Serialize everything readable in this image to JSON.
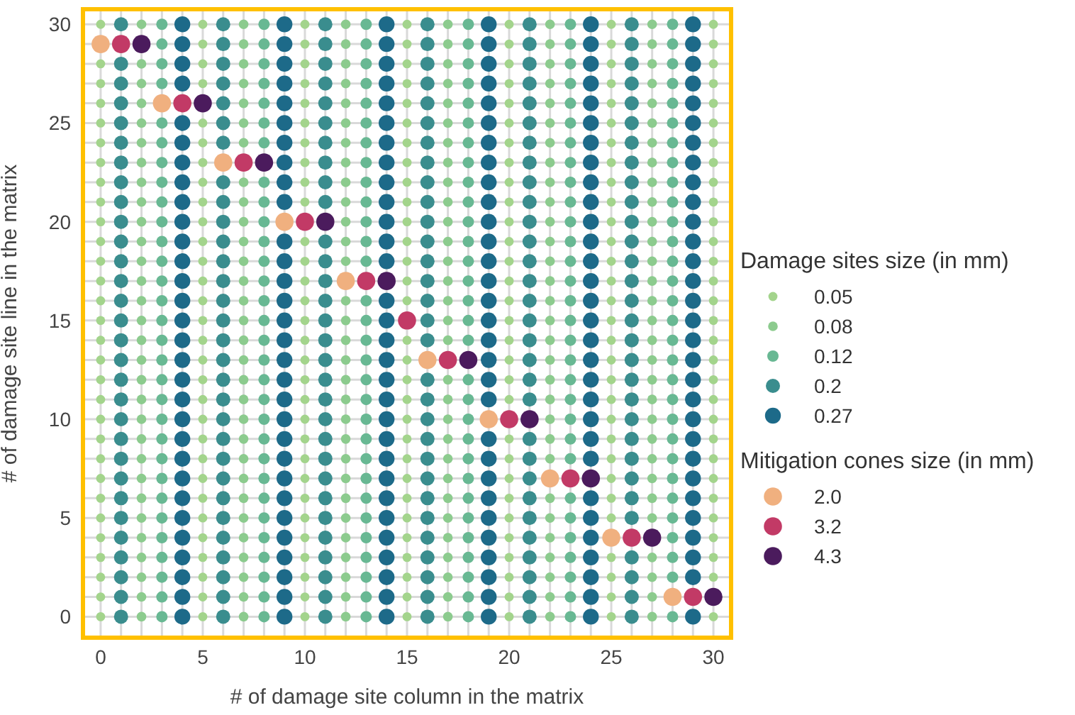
{
  "chart_data": {
    "type": "scatter",
    "xlabel": "# of damage site column in the matrix",
    "ylabel": "# of damage site line in the matrix",
    "legend_title": [
      "Damage sites size (in mm)",
      "Mitigation cones size (in mm)"
    ],
    "legend": "right",
    "grid": true,
    "marker": "circle",
    "xlim": [
      -0.9,
      30.9
    ],
    "ylim": [
      -1.1,
      30.8
    ],
    "xticks": [
      0,
      {
        "value": 1,
        "label": null
      },
      {
        "value": 2,
        "label": null
      },
      {
        "value": 3,
        "label": null
      },
      {
        "value": 4,
        "label": null
      },
      5,
      {
        "value": 6,
        "label": null
      },
      {
        "value": 7,
        "label": null
      },
      {
        "value": 8,
        "label": null
      },
      {
        "value": 9,
        "label": null
      },
      10,
      {
        "value": 11,
        "label": null
      },
      {
        "value": 12,
        "label": null
      },
      {
        "value": 13,
        "label": null
      },
      {
        "value": 14,
        "label": null
      },
      15,
      {
        "value": 16,
        "label": null
      },
      {
        "value": 17,
        "label": null
      },
      {
        "value": 18,
        "label": null
      },
      {
        "value": 19,
        "label": null
      },
      20,
      {
        "value": 21,
        "label": null
      },
      {
        "value": 22,
        "label": null
      },
      {
        "value": 23,
        "label": null
      },
      {
        "value": 24,
        "label": null
      },
      25,
      {
        "value": 26,
        "label": null
      },
      {
        "value": 27,
        "label": null
      },
      {
        "value": 28,
        "label": null
      },
      {
        "value": 29,
        "label": null
      },
      30
    ],
    "yticks": [
      0,
      {
        "value": 1,
        "label": null
      },
      {
        "value": 2,
        "label": null
      },
      {
        "value": 3,
        "label": null
      },
      {
        "value": 4,
        "label": null
      },
      5,
      {
        "value": 6,
        "label": null
      },
      {
        "value": 7,
        "label": null
      },
      {
        "value": 8,
        "label": null
      },
      {
        "value": 9,
        "label": null
      },
      10,
      {
        "value": 11,
        "label": null
      },
      {
        "value": 12,
        "label": null
      },
      {
        "value": 13,
        "label": null
      },
      {
        "value": 14,
        "label": null
      },
      15,
      {
        "value": 16,
        "label": null
      },
      {
        "value": 17,
        "label": null
      },
      {
        "value": 18,
        "label": null
      },
      {
        "value": 19,
        "label": null
      },
      20,
      {
        "value": 21,
        "label": null
      },
      {
        "value": 22,
        "label": null
      },
      {
        "value": 23,
        "label": null
      },
      {
        "value": 24,
        "label": null
      },
      25,
      {
        "value": 26,
        "label": null
      },
      {
        "value": 27,
        "label": null
      },
      {
        "value": 28,
        "label": null
      },
      {
        "value": 29,
        "label": null
      },
      30
    ],
    "series": [
      {
        "name": "0.05",
        "color": "#a3d48c",
        "x": [
          0,
          0,
          0,
          0,
          0,
          0,
          0,
          0,
          0,
          0,
          0,
          0,
          0,
          0,
          0,
          0,
          0,
          0,
          0,
          0,
          0,
          0,
          0,
          0,
          0,
          0,
          0,
          0,
          0,
          0,
          5,
          5,
          5,
          5,
          5,
          5,
          5,
          5,
          5,
          5,
          5,
          5,
          5,
          5,
          5,
          5,
          5,
          5,
          5,
          5,
          5,
          5,
          5,
          5,
          5,
          5,
          5,
          5,
          5,
          5,
          10,
          10,
          10,
          10,
          10,
          10,
          10,
          10,
          10,
          10,
          10,
          10,
          10,
          10,
          10,
          10,
          10,
          10,
          10,
          10,
          10,
          10,
          10,
          10,
          10,
          10,
          10,
          10,
          10,
          10,
          15,
          15,
          15,
          15,
          15,
          15,
          15,
          15,
          15,
          15,
          15,
          15,
          15,
          15,
          15,
          15,
          15,
          15,
          15,
          15,
          15,
          15,
          15,
          15,
          15,
          15,
          15,
          15,
          15,
          15,
          20,
          20,
          20,
          20,
          20,
          20,
          20,
          20,
          20,
          20,
          20,
          20,
          20,
          20,
          20,
          20,
          20,
          20,
          20,
          20,
          20,
          20,
          20,
          20,
          20,
          20,
          20,
          20,
          20,
          20,
          25,
          25,
          25,
          25,
          25,
          25,
          25,
          25,
          25,
          25,
          25,
          25,
          25,
          25,
          25,
          25,
          25,
          25,
          25,
          25,
          25,
          25,
          25,
          25,
          25,
          25,
          25,
          25,
          25,
          25,
          30,
          30,
          30,
          30,
          30,
          30,
          30,
          30,
          30,
          30,
          30,
          30,
          30,
          30,
          30,
          30,
          30,
          30,
          30,
          30,
          30,
          30,
          30,
          30,
          30,
          30,
          30,
          30,
          30,
          30
        ],
        "values": [
          0,
          1,
          2,
          3,
          4,
          5,
          6,
          7,
          8,
          9,
          10,
          11,
          12,
          13,
          14,
          15,
          16,
          17,
          18,
          19,
          20,
          21,
          22,
          23,
          24,
          25,
          26,
          27,
          28,
          30,
          0,
          1,
          2,
          3,
          4,
          5,
          6,
          7,
          8,
          9,
          10,
          11,
          12,
          13,
          14,
          15,
          16,
          17,
          18,
          19,
          20,
          21,
          22,
          23,
          24,
          25,
          27,
          28,
          29,
          30,
          0,
          1,
          2,
          3,
          4,
          5,
          6,
          7,
          8,
          9,
          10,
          11,
          12,
          13,
          14,
          15,
          16,
          17,
          18,
          19,
          21,
          22,
          23,
          24,
          25,
          26,
          27,
          28,
          29,
          30,
          0,
          1,
          2,
          3,
          4,
          5,
          6,
          7,
          8,
          9,
          10,
          11,
          12,
          13,
          14,
          16,
          17,
          18,
          19,
          20,
          21,
          22,
          23,
          24,
          25,
          26,
          27,
          28,
          29,
          30,
          0,
          1,
          2,
          3,
          4,
          5,
          6,
          7,
          8,
          9,
          11,
          12,
          13,
          14,
          15,
          16,
          17,
          18,
          19,
          20,
          21,
          22,
          23,
          24,
          25,
          26,
          27,
          28,
          29,
          30,
          0,
          1,
          2,
          3,
          5,
          6,
          7,
          8,
          9,
          10,
          11,
          12,
          13,
          14,
          15,
          16,
          17,
          18,
          19,
          20,
          21,
          22,
          23,
          24,
          25,
          26,
          27,
          28,
          29,
          30,
          0,
          2,
          3,
          4,
          5,
          6,
          7,
          8,
          9,
          10,
          11,
          12,
          13,
          14,
          15,
          16,
          17,
          18,
          19,
          20,
          21,
          22,
          23,
          24,
          25,
          26,
          27,
          28,
          29,
          30
        ]
      },
      {
        "name": "0.08",
        "color": "#8ccb8e",
        "x": [
          2,
          2,
          2,
          2,
          2,
          2,
          2,
          2,
          2,
          2,
          2,
          2,
          2,
          2,
          2,
          2,
          2,
          2,
          2,
          2,
          2,
          2,
          2,
          2,
          2,
          2,
          2,
          2,
          2,
          2,
          7,
          7,
          7,
          7,
          7,
          7,
          7,
          7,
          7,
          7,
          7,
          7,
          7,
          7,
          7,
          7,
          7,
          7,
          7,
          7,
          7,
          7,
          7,
          7,
          7,
          7,
          7,
          7,
          7,
          7,
          12,
          12,
          12,
          12,
          12,
          12,
          12,
          12,
          12,
          12,
          12,
          12,
          12,
          12,
          12,
          12,
          12,
          12,
          12,
          12,
          12,
          12,
          12,
          12,
          12,
          12,
          12,
          12,
          12,
          12,
          17,
          17,
          17,
          17,
          17,
          17,
          17,
          17,
          17,
          17,
          17,
          17,
          17,
          17,
          17,
          17,
          17,
          17,
          17,
          17,
          17,
          17,
          17,
          17,
          17,
          17,
          17,
          17,
          17,
          17,
          22,
          22,
          22,
          22,
          22,
          22,
          22,
          22,
          22,
          22,
          22,
          22,
          22,
          22,
          22,
          22,
          22,
          22,
          22,
          22,
          22,
          22,
          22,
          22,
          22,
          22,
          22,
          22,
          22,
          22,
          27,
          27,
          27,
          27,
          27,
          27,
          27,
          27,
          27,
          27,
          27,
          27,
          27,
          27,
          27,
          27,
          27,
          27,
          27,
          27,
          27,
          27,
          27,
          27,
          27,
          27,
          27,
          27,
          27,
          27
        ],
        "values": [
          0,
          1,
          2,
          3,
          4,
          5,
          6,
          7,
          8,
          9,
          10,
          11,
          12,
          13,
          14,
          15,
          16,
          17,
          18,
          19,
          20,
          21,
          22,
          23,
          24,
          25,
          26,
          27,
          28,
          30,
          0,
          1,
          2,
          3,
          4,
          5,
          6,
          7,
          8,
          9,
          10,
          11,
          12,
          13,
          14,
          15,
          16,
          17,
          18,
          19,
          20,
          21,
          22,
          24,
          25,
          26,
          27,
          28,
          29,
          30,
          0,
          1,
          2,
          3,
          4,
          5,
          6,
          7,
          8,
          9,
          10,
          11,
          12,
          13,
          14,
          15,
          16,
          18,
          19,
          20,
          21,
          22,
          23,
          24,
          25,
          26,
          27,
          28,
          29,
          30,
          0,
          1,
          2,
          3,
          4,
          5,
          6,
          7,
          8,
          9,
          10,
          11,
          12,
          14,
          15,
          16,
          17,
          18,
          19,
          20,
          21,
          22,
          23,
          24,
          25,
          26,
          27,
          28,
          29,
          30,
          0,
          1,
          2,
          3,
          4,
          5,
          6,
          8,
          9,
          10,
          11,
          12,
          13,
          14,
          15,
          16,
          17,
          18,
          19,
          20,
          21,
          22,
          23,
          24,
          25,
          26,
          27,
          28,
          29,
          30,
          0,
          1,
          2,
          3,
          5,
          6,
          7,
          8,
          9,
          10,
          11,
          12,
          13,
          14,
          15,
          16,
          17,
          18,
          19,
          20,
          21,
          22,
          23,
          24,
          25,
          26,
          27,
          28,
          29,
          30
        ]
      },
      {
        "name": "0.12",
        "color": "#68b893",
        "x": [
          3,
          3,
          3,
          3,
          3,
          3,
          3,
          3,
          3,
          3,
          3,
          3,
          3,
          3,
          3,
          3,
          3,
          3,
          3,
          3,
          3,
          3,
          3,
          3,
          3,
          3,
          3,
          3,
          3,
          3,
          8,
          8,
          8,
          8,
          8,
          8,
          8,
          8,
          8,
          8,
          8,
          8,
          8,
          8,
          8,
          8,
          8,
          8,
          8,
          8,
          8,
          8,
          8,
          8,
          8,
          8,
          8,
          8,
          8,
          8,
          13,
          13,
          13,
          13,
          13,
          13,
          13,
          13,
          13,
          13,
          13,
          13,
          13,
          13,
          13,
          13,
          13,
          13,
          13,
          13,
          13,
          13,
          13,
          13,
          13,
          13,
          13,
          13,
          13,
          13,
          18,
          18,
          18,
          18,
          18,
          18,
          18,
          18,
          18,
          18,
          18,
          18,
          18,
          18,
          18,
          18,
          18,
          18,
          18,
          18,
          18,
          18,
          18,
          18,
          18,
          18,
          18,
          18,
          18,
          18,
          23,
          23,
          23,
          23,
          23,
          23,
          23,
          23,
          23,
          23,
          23,
          23,
          23,
          23,
          23,
          23,
          23,
          23,
          23,
          23,
          23,
          23,
          23,
          23,
          23,
          23,
          23,
          23,
          23,
          23,
          28,
          28,
          28,
          28,
          28,
          28,
          28,
          28,
          28,
          28,
          28,
          28,
          28,
          28,
          28,
          28,
          28,
          28,
          28,
          28,
          28,
          28,
          28,
          28,
          28,
          28,
          28,
          28,
          28,
          28
        ],
        "values": [
          0,
          1,
          2,
          3,
          4,
          5,
          6,
          7,
          8,
          9,
          10,
          11,
          12,
          13,
          14,
          15,
          16,
          17,
          18,
          19,
          20,
          21,
          22,
          23,
          24,
          25,
          27,
          28,
          29,
          30,
          0,
          1,
          2,
          3,
          4,
          5,
          6,
          7,
          8,
          9,
          10,
          11,
          12,
          13,
          14,
          15,
          16,
          17,
          18,
          19,
          20,
          21,
          22,
          24,
          25,
          26,
          27,
          28,
          29,
          30,
          0,
          1,
          2,
          3,
          4,
          5,
          6,
          7,
          8,
          9,
          10,
          11,
          12,
          13,
          14,
          15,
          16,
          18,
          19,
          20,
          21,
          22,
          23,
          24,
          25,
          26,
          27,
          28,
          29,
          30,
          0,
          1,
          2,
          3,
          4,
          5,
          6,
          7,
          8,
          9,
          10,
          11,
          12,
          14,
          15,
          16,
          17,
          18,
          19,
          20,
          21,
          22,
          23,
          24,
          25,
          26,
          27,
          28,
          29,
          30,
          0,
          1,
          2,
          3,
          4,
          5,
          6,
          8,
          9,
          10,
          11,
          12,
          13,
          14,
          15,
          16,
          17,
          18,
          19,
          20,
          21,
          22,
          23,
          24,
          25,
          26,
          27,
          28,
          29,
          30,
          0,
          2,
          3,
          4,
          5,
          6,
          7,
          8,
          9,
          10,
          11,
          12,
          13,
          14,
          15,
          16,
          17,
          18,
          19,
          20,
          21,
          22,
          23,
          24,
          25,
          26,
          27,
          28,
          29,
          30
        ]
      },
      {
        "name": "0.2",
        "color": "#3a8d8e",
        "x": [
          1,
          1,
          1,
          1,
          1,
          1,
          1,
          1,
          1,
          1,
          1,
          1,
          1,
          1,
          1,
          1,
          1,
          1,
          1,
          1,
          1,
          1,
          1,
          1,
          1,
          1,
          1,
          1,
          1,
          1,
          6,
          6,
          6,
          6,
          6,
          6,
          6,
          6,
          6,
          6,
          6,
          6,
          6,
          6,
          6,
          6,
          6,
          6,
          6,
          6,
          6,
          6,
          6,
          6,
          6,
          6,
          6,
          6,
          6,
          6,
          11,
          11,
          11,
          11,
          11,
          11,
          11,
          11,
          11,
          11,
          11,
          11,
          11,
          11,
          11,
          11,
          11,
          11,
          11,
          11,
          11,
          11,
          11,
          11,
          11,
          11,
          11,
          11,
          11,
          11,
          16,
          16,
          16,
          16,
          16,
          16,
          16,
          16,
          16,
          16,
          16,
          16,
          16,
          16,
          16,
          16,
          16,
          16,
          16,
          16,
          16,
          16,
          16,
          16,
          16,
          16,
          16,
          16,
          16,
          16,
          21,
          21,
          21,
          21,
          21,
          21,
          21,
          21,
          21,
          21,
          21,
          21,
          21,
          21,
          21,
          21,
          21,
          21,
          21,
          21,
          21,
          21,
          21,
          21,
          21,
          21,
          21,
          21,
          21,
          21,
          26,
          26,
          26,
          26,
          26,
          26,
          26,
          26,
          26,
          26,
          26,
          26,
          26,
          26,
          26,
          26,
          26,
          26,
          26,
          26,
          26,
          26,
          26,
          26,
          26,
          26,
          26,
          26,
          26,
          26
        ],
        "values": [
          0,
          1,
          2,
          3,
          4,
          5,
          6,
          7,
          8,
          9,
          10,
          11,
          12,
          13,
          14,
          15,
          16,
          17,
          18,
          19,
          20,
          21,
          22,
          23,
          24,
          25,
          26,
          27,
          28,
          30,
          0,
          1,
          2,
          3,
          4,
          5,
          6,
          7,
          8,
          9,
          10,
          11,
          12,
          13,
          14,
          15,
          16,
          17,
          18,
          19,
          20,
          21,
          22,
          24,
          25,
          26,
          27,
          28,
          29,
          30,
          0,
          1,
          2,
          3,
          4,
          5,
          6,
          7,
          8,
          9,
          10,
          11,
          12,
          13,
          14,
          15,
          16,
          17,
          18,
          19,
          21,
          22,
          23,
          24,
          25,
          26,
          27,
          28,
          29,
          30,
          0,
          1,
          2,
          3,
          4,
          5,
          6,
          7,
          8,
          9,
          10,
          11,
          12,
          14,
          15,
          16,
          17,
          18,
          19,
          20,
          21,
          22,
          23,
          24,
          25,
          26,
          27,
          28,
          29,
          30,
          0,
          1,
          2,
          3,
          4,
          5,
          6,
          7,
          8,
          9,
          11,
          12,
          13,
          14,
          15,
          16,
          17,
          18,
          19,
          20,
          21,
          22,
          23,
          24,
          25,
          26,
          27,
          28,
          29,
          30,
          0,
          1,
          2,
          3,
          5,
          6,
          7,
          8,
          9,
          10,
          11,
          12,
          13,
          14,
          15,
          16,
          17,
          18,
          19,
          20,
          21,
          22,
          23,
          24,
          25,
          26,
          27,
          28,
          29,
          30
        ]
      },
      {
        "name": "0.27",
        "color": "#1d6a89",
        "x": [
          4,
          4,
          4,
          4,
          4,
          4,
          4,
          4,
          4,
          4,
          4,
          4,
          4,
          4,
          4,
          4,
          4,
          4,
          4,
          4,
          4,
          4,
          4,
          4,
          4,
          4,
          4,
          4,
          4,
          4,
          9,
          9,
          9,
          9,
          9,
          9,
          9,
          9,
          9,
          9,
          9,
          9,
          9,
          9,
          9,
          9,
          9,
          9,
          9,
          9,
          9,
          9,
          9,
          9,
          9,
          9,
          9,
          9,
          9,
          9,
          14,
          14,
          14,
          14,
          14,
          14,
          14,
          14,
          14,
          14,
          14,
          14,
          14,
          14,
          14,
          14,
          14,
          14,
          14,
          14,
          14,
          14,
          14,
          14,
          14,
          14,
          14,
          14,
          14,
          14,
          19,
          19,
          19,
          19,
          19,
          19,
          19,
          19,
          19,
          19,
          19,
          19,
          19,
          19,
          19,
          19,
          19,
          19,
          19,
          19,
          19,
          19,
          19,
          19,
          19,
          19,
          19,
          19,
          19,
          19,
          24,
          24,
          24,
          24,
          24,
          24,
          24,
          24,
          24,
          24,
          24,
          24,
          24,
          24,
          24,
          24,
          24,
          24,
          24,
          24,
          24,
          24,
          24,
          24,
          24,
          24,
          24,
          24,
          24,
          24,
          29,
          29,
          29,
          29,
          29,
          29,
          29,
          29,
          29,
          29,
          29,
          29,
          29,
          29,
          29,
          29,
          29,
          29,
          29,
          29,
          29,
          29,
          29,
          29,
          29,
          29,
          29,
          29,
          29,
          29
        ],
        "values": [
          0,
          1,
          2,
          3,
          4,
          5,
          6,
          7,
          8,
          9,
          10,
          11,
          12,
          13,
          14,
          15,
          16,
          17,
          18,
          19,
          20,
          21,
          22,
          23,
          24,
          25,
          27,
          28,
          29,
          30,
          0,
          1,
          2,
          3,
          4,
          5,
          6,
          7,
          8,
          9,
          10,
          11,
          12,
          13,
          14,
          15,
          16,
          17,
          18,
          19,
          21,
          22,
          23,
          24,
          25,
          26,
          27,
          28,
          29,
          30,
          0,
          1,
          2,
          3,
          4,
          5,
          6,
          7,
          8,
          9,
          10,
          11,
          12,
          13,
          14,
          15,
          16,
          18,
          19,
          20,
          21,
          22,
          23,
          24,
          25,
          26,
          27,
          28,
          29,
          30,
          0,
          1,
          2,
          3,
          4,
          5,
          6,
          7,
          8,
          9,
          11,
          12,
          13,
          14,
          15,
          16,
          17,
          18,
          19,
          20,
          21,
          22,
          23,
          24,
          25,
          26,
          27,
          28,
          29,
          30,
          0,
          1,
          2,
          3,
          4,
          5,
          6,
          8,
          9,
          10,
          11,
          12,
          13,
          14,
          15,
          16,
          17,
          18,
          19,
          20,
          21,
          22,
          23,
          24,
          25,
          26,
          27,
          28,
          29,
          30,
          0,
          2,
          3,
          4,
          5,
          6,
          7,
          8,
          9,
          10,
          11,
          12,
          13,
          14,
          15,
          16,
          17,
          18,
          19,
          20,
          21,
          22,
          23,
          24,
          25,
          26,
          27,
          28,
          29,
          30
        ]
      },
      {
        "name": "2.0",
        "color": "#f0b07f",
        "x": [
          0,
          3,
          6,
          9,
          12,
          16,
          19,
          22,
          25,
          28
        ],
        "values": [
          29,
          26,
          23,
          20,
          17,
          13,
          10,
          7,
          4,
          1
        ]
      },
      {
        "name": "3.2",
        "color": "#c23a66",
        "x": [
          1,
          4,
          7,
          10,
          13,
          15,
          17,
          20,
          23,
          26,
          29
        ],
        "values": [
          29,
          26,
          23,
          20,
          17,
          15,
          13,
          10,
          7,
          4,
          1
        ]
      },
      {
        "name": "4.3",
        "color": "#4b1b5d",
        "x": [
          2,
          5,
          8,
          11,
          14,
          18,
          21,
          24,
          27,
          30
        ],
        "values": [
          29,
          26,
          23,
          20,
          17,
          13,
          10,
          7,
          4,
          1
        ]
      }
    ]
  }
}
